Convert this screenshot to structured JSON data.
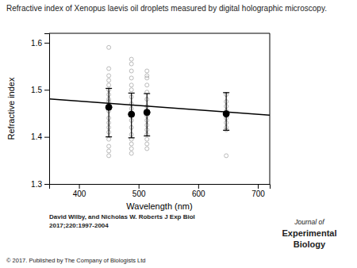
{
  "chart_data": {
    "type": "scatter",
    "title": "Refractive index of Xenopus laevis oil droplets measured by digital holographic microscopy.",
    "x_label": "Wavelength (nm)",
    "y_label": "Refractive index",
    "xlim": [
      350,
      720
    ],
    "ylim": [
      1.3,
      1.62
    ],
    "xticks": [
      400,
      500,
      600,
      700
    ],
    "yticks": [
      1.3,
      1.4,
      1.5,
      1.6
    ],
    "series": [
      {
        "type": "scatter",
        "marker": "open_circle",
        "color": "#aaaaaa",
        "x": [
          450,
          450,
          450,
          450,
          450,
          450,
          450,
          450,
          450,
          450,
          450,
          450,
          450,
          450,
          450,
          450,
          450,
          450,
          450
        ],
        "values": [
          1.59,
          1.545,
          1.53,
          1.52,
          1.51,
          1.5,
          1.49,
          1.48,
          1.475,
          1.465,
          1.455,
          1.44,
          1.43,
          1.42,
          1.41,
          1.395,
          1.38,
          1.37,
          1.36
        ]
      },
      {
        "type": "scatter",
        "marker": "open_circle",
        "color": "#aaaaaa",
        "x": [
          488,
          488,
          488,
          488,
          488,
          488,
          488,
          488,
          488,
          488,
          488,
          488,
          488,
          488,
          488,
          488,
          488
        ],
        "values": [
          1.565,
          1.555,
          1.54,
          1.525,
          1.51,
          1.5,
          1.485,
          1.47,
          1.46,
          1.45,
          1.435,
          1.42,
          1.405,
          1.395,
          1.385,
          1.375,
          1.365
        ]
      },
      {
        "type": "scatter",
        "marker": "open_circle",
        "color": "#aaaaaa",
        "x": [
          514,
          514,
          514,
          514,
          514,
          514,
          514,
          514,
          514,
          514,
          514,
          514,
          514,
          514,
          514,
          514
        ],
        "values": [
          1.54,
          1.53,
          1.525,
          1.51,
          1.495,
          1.48,
          1.465,
          1.455,
          1.445,
          1.435,
          1.425,
          1.415,
          1.405,
          1.395,
          1.385,
          1.375
        ]
      },
      {
        "type": "scatter",
        "marker": "open_circle",
        "color": "#aaaaaa",
        "x": [
          647,
          647,
          647,
          647,
          647,
          647,
          647,
          647,
          647,
          647
        ],
        "values": [
          1.49,
          1.475,
          1.465,
          1.455,
          1.445,
          1.44,
          1.43,
          1.42,
          1.415,
          1.36
        ]
      },
      {
        "type": "line",
        "line_style": "solid",
        "color": "#000000",
        "x": [
          350,
          720
        ],
        "values": [
          1.48052,
          1.446184
        ]
      },
      {
        "type": "scatter",
        "marker": "circle",
        "color": "#000000",
        "x": [
          450,
          488,
          514,
          647
        ],
        "values": [
          1.463,
          1.448,
          1.452,
          1.449
        ],
        "error_low": [
          0.063,
          0.05,
          0.05,
          0.035
        ],
        "error_high": [
          0.04,
          0.045,
          0.04,
          0.045
        ]
      }
    ],
    "annotations": [
      "David Wilby, and Nicholas W. Roberts J Exp Biol",
      "2017;220:1997-2004",
      "© 2017. Published by The Company of Biologists Ltd",
      "Journal of",
      "Experimental",
      "Biology"
    ]
  }
}
